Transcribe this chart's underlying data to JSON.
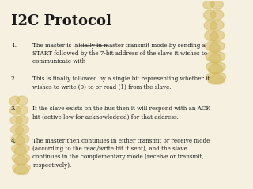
{
  "title": "I2C Protocol",
  "background_color": "#f5f0e0",
  "title_color": "#1a1a1a",
  "text_color": "#1a1a1a",
  "title_fontsize": 13,
  "body_fontsize": 5.2,
  "items": [
    {
      "number": "1.",
      "text": "The master is initially in master transmit mode by sending a\nSTART followed by the 7-bit address of the slave it wishes to\ncommunicate with",
      "underline_phrase": "master transmit mode"
    },
    {
      "number": "2.",
      "text": "This is finally followed by a single bit representing whether it\nwishes to write (0) to or read (1) from the slave.",
      "underline_phrase": ""
    },
    {
      "number": "3.",
      "text": "If the slave exists on the bus then it will respond with an ACK\nbit (active low for acknowledged) for that address.",
      "underline_phrase": ""
    },
    {
      "number": "4.",
      "text": "The master then continues in either transmit or receive mode\n(according to the read/write bit it sent), and the slave\ncontinues in the complementary mode (receive or transmit,\nrespectively).",
      "underline_phrase": ""
    }
  ],
  "feather_color": "#d4b85a",
  "font_family": "serif"
}
